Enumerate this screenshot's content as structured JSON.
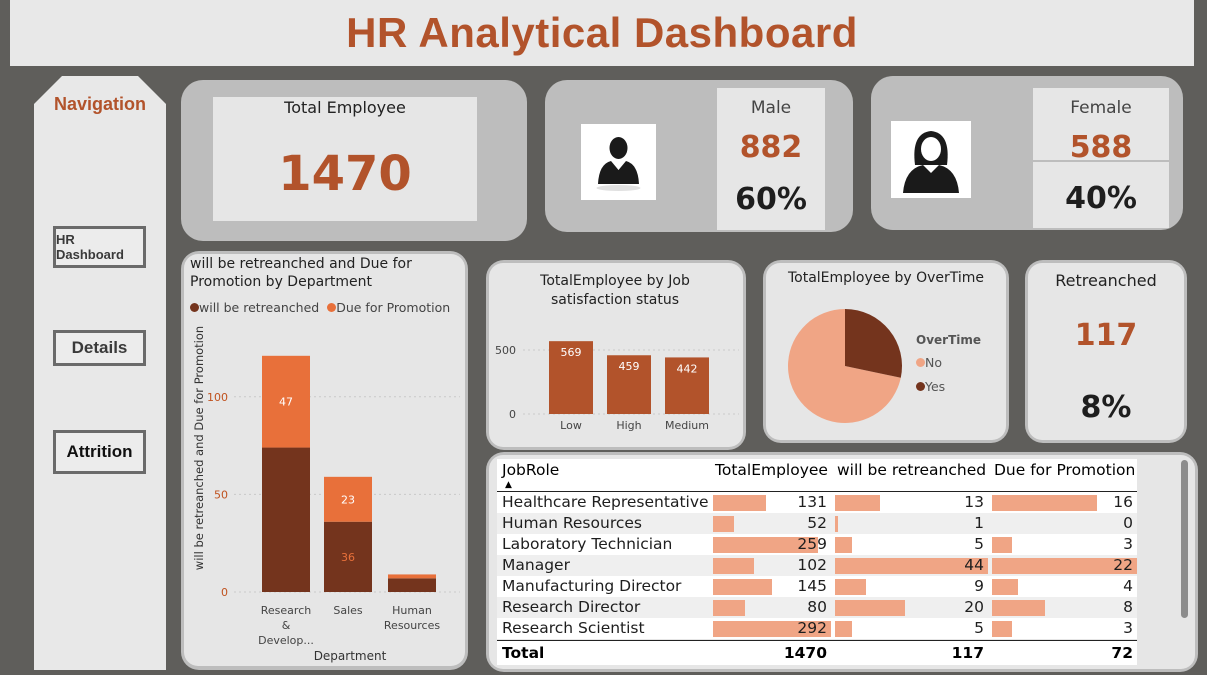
{
  "title": "HR Analytical Dashboard",
  "navigation": {
    "title": "Navigation",
    "buttons": [
      "HR Dashboard",
      "Details",
      "Attrition"
    ]
  },
  "kpis": {
    "total_employee_label": "Total Employee",
    "total_employee_value": "1470",
    "male_label": "Male",
    "male_count": "882",
    "male_pct": "60%",
    "female_label": "Female",
    "female_count": "588",
    "female_pct": "40%",
    "retreanched_label": "Retreanched",
    "retreanched_value": "117",
    "retreanched_pct": "8%"
  },
  "colors": {
    "accent": "#b2532b",
    "dark_series": "#74341d",
    "light_series": "#e8703a",
    "pie_light": "#f0a585",
    "bar_bg": "#f0a585"
  },
  "chart_data": [
    {
      "type": "bar",
      "title": "will be retreanched and Due for Promotion by Department",
      "stacked": true,
      "categories": [
        "Research & Develop...",
        "Sales",
        "Human Resources"
      ],
      "xlabel": "Department",
      "ylabel": "will be retreanched and Due for Promotion",
      "ylim": [
        0,
        125
      ],
      "yticks": [
        0,
        50,
        100
      ],
      "legend": "top-left",
      "series": [
        {
          "name": "will be retreanched",
          "values": [
            74,
            36,
            7
          ],
          "labels": [
            "",
            "36",
            ""
          ]
        },
        {
          "name": "Due for Promotion",
          "values": [
            47,
            23,
            2
          ],
          "labels": [
            "47",
            "23",
            ""
          ]
        }
      ]
    },
    {
      "type": "bar",
      "title": "TotalEmployee by Job satisfaction status",
      "categories": [
        "Low",
        "High",
        "Medium"
      ],
      "values": [
        569,
        459,
        442
      ],
      "ylim": [
        0,
        580
      ],
      "yticks": [
        0,
        500
      ]
    },
    {
      "type": "pie",
      "title": "TotalEmployee by OverTime",
      "legend_title": "OverTime",
      "categories": [
        "No",
        "Yes"
      ],
      "values": [
        1054,
        416
      ]
    },
    {
      "type": "table",
      "columns": [
        "JobRole",
        "TotalEmployee",
        "will be retreanched",
        "Due for Promotion"
      ],
      "rows": [
        [
          "Healthcare Representative",
          131,
          13,
          16
        ],
        [
          "Human Resources",
          52,
          1,
          0
        ],
        [
          "Laboratory Technician",
          259,
          5,
          3
        ],
        [
          "Manager",
          102,
          44,
          22
        ],
        [
          "Manufacturing Director",
          145,
          9,
          4
        ],
        [
          "Research Director",
          80,
          20,
          8
        ],
        [
          "Research Scientist",
          292,
          5,
          3
        ]
      ],
      "total": [
        "Total",
        1470,
        117,
        72
      ],
      "bar_max": [
        null,
        292,
        44,
        22
      ]
    }
  ]
}
